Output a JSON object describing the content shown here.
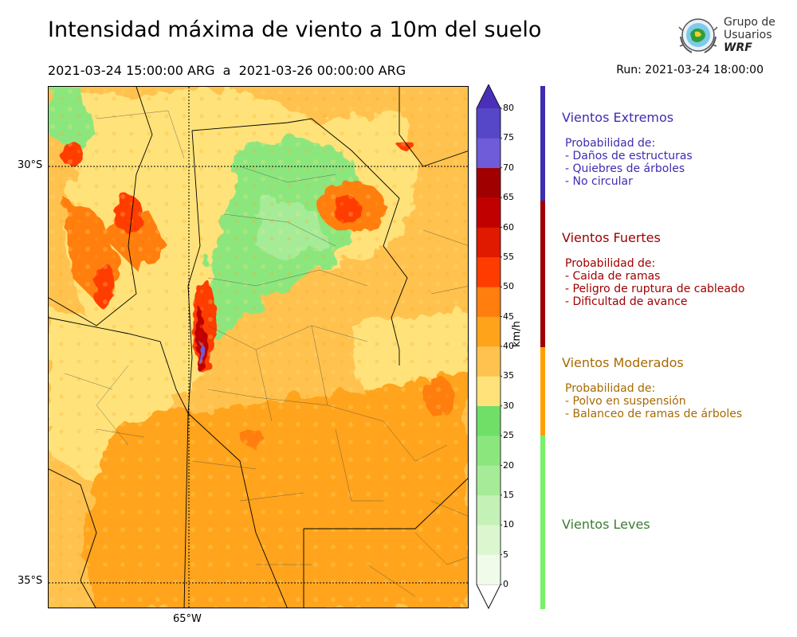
{
  "header": {
    "title": "Intensidad máxima de viento a 10m del suelo",
    "period": "2021-03-24 15:00:00 ARG  a  2021-03-26 00:00:00 ARG",
    "run": "Run: 2021-03-24 18:00:00"
  },
  "logo": {
    "line1": "Grupo de",
    "line2": "Usuarios",
    "line3": "WRF"
  },
  "map": {
    "lat_labels": [
      "30°S",
      "35°S"
    ],
    "lon_labels": [
      "65°W"
    ]
  },
  "colorbar": {
    "unit": "km/h",
    "ticks": [
      "0",
      "5",
      "10",
      "15",
      "20",
      "25",
      "30",
      "35",
      "40",
      "45",
      "50",
      "55",
      "60",
      "65",
      "70",
      "75",
      "80"
    ],
    "colors": [
      "#f0fbea",
      "#dcf7d0",
      "#c4f1b6",
      "#a6ec98",
      "#8ce67e",
      "#6fdf68",
      "#ffe27a",
      "#ffc24e",
      "#ffa41a",
      "#ff7e0e",
      "#ff3c00",
      "#e01a00",
      "#c00000",
      "#a00000",
      "#6e5cd8",
      "#5646c8",
      "#4030b0"
    ],
    "extend_color": "#4a2fb8"
  },
  "categories": [
    {
      "title": "Vientos Extremos",
      "color": "#3d2db0",
      "bar": "#3d2db0",
      "lines": [
        "Probabilidad de:",
        "- Daños de estructuras",
        "- Quiebres de árboles",
        "- No circular"
      ]
    },
    {
      "title": "Vientos Fuertes",
      "color": "#a00000",
      "bar": "#a00000",
      "lines": [
        "Probabilidad de:",
        "- Caida de ramas",
        "- Peligro de ruptura de cableado",
        "- Dificultad de avance"
      ]
    },
    {
      "title": "Vientos Moderados",
      "color": "#a86a00",
      "bar": "#ffa000",
      "lines": [
        "Probabilidad de:",
        "- Polvo en suspensión",
        "- Balanceo de ramas de árboles"
      ]
    },
    {
      "title": "Vientos Leves",
      "color": "#3a7d30",
      "bar": "#77f266",
      "lines": []
    }
  ]
}
